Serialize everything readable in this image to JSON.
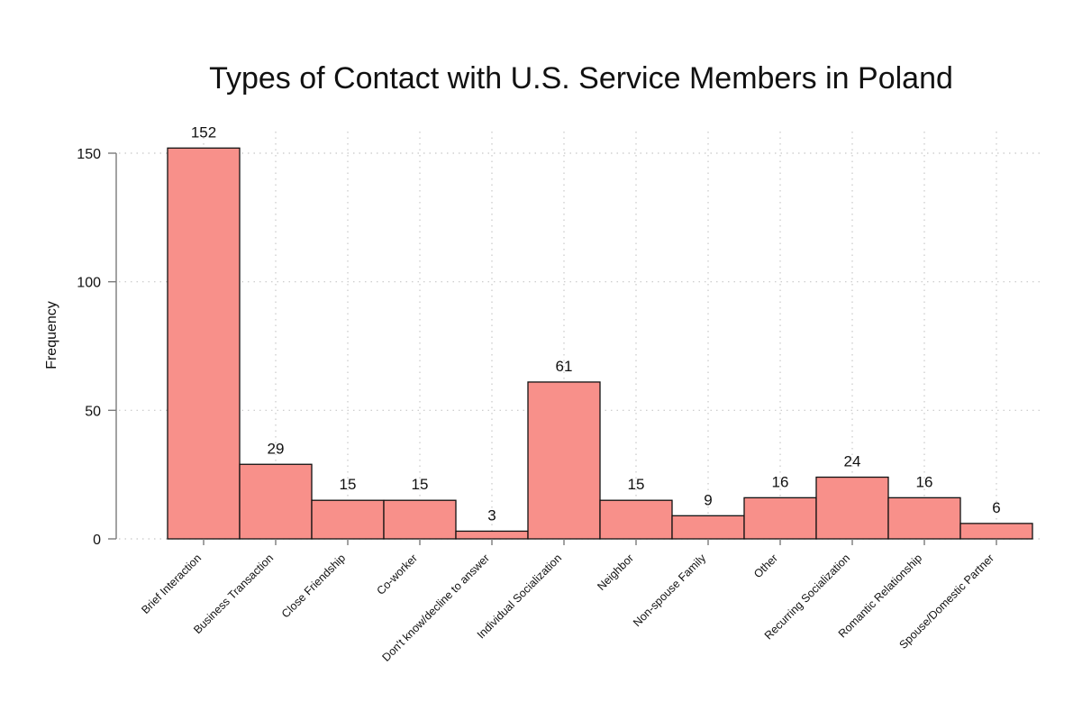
{
  "chart_data": {
    "type": "bar",
    "title": "Types of Contact with U.S. Service Members in Poland",
    "xlabel": "",
    "ylabel": "Frequency",
    "categories": [
      "Brief Interaction",
      "Business Transaction",
      "Close Friendship",
      "Co-worker",
      "Don't know/decline to answer",
      "Individual Socialization",
      "Neighbor",
      "Non-spouse Family",
      "Other",
      "Recurring Socialization",
      "Romantic Relationship",
      "Spouse/Domestic Partner"
    ],
    "values": [
      152,
      29,
      15,
      15,
      3,
      61,
      15,
      9,
      16,
      24,
      16,
      6
    ],
    "ylim": [
      0,
      150
    ],
    "yticks": [
      0,
      50,
      100,
      150
    ],
    "grid": true,
    "data_labels": true,
    "legend": "none",
    "colors": {
      "bar_fill": "#f8908a",
      "bar_edge": "#111111",
      "grid": "#c8c8c8",
      "axis": "#7a7a7a",
      "text": "#111111"
    }
  }
}
